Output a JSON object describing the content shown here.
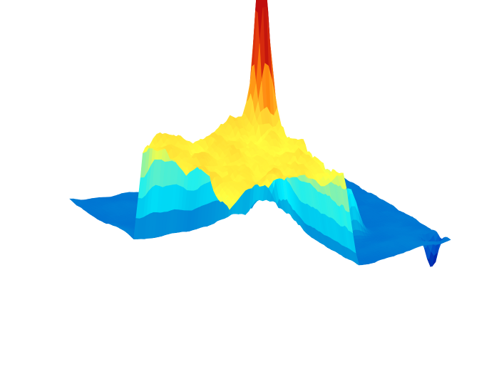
{
  "chart_data": {
    "type": "surface3d",
    "title": "",
    "xlabel": "",
    "ylabel": "",
    "zlabel": "",
    "axes_visible": false,
    "grid": false,
    "legend": "none",
    "colormap": [
      "#00008f",
      "#0050c8",
      "#00a8e0",
      "#00eeff",
      "#6ff0c0",
      "#ffff40",
      "#ffd030",
      "#ff8a10",
      "#e84010",
      "#c01010"
    ],
    "z_range": [
      -0.7,
      4.4
    ],
    "terrain_features": [
      {
        "label": "plateau",
        "x": [
          0.0,
          0.55
        ],
        "y": [
          0.0,
          0.6
        ],
        "height": 2.0
      },
      {
        "label": "peak",
        "x": 0.52,
        "y": 0.48,
        "height": 4.4
      },
      {
        "label": "ridge",
        "x": 0.68,
        "y": 0.62,
        "height": 1.4
      },
      {
        "label": "pit",
        "x": 0.7,
        "y": 0.98,
        "height": -0.7
      }
    ]
  }
}
